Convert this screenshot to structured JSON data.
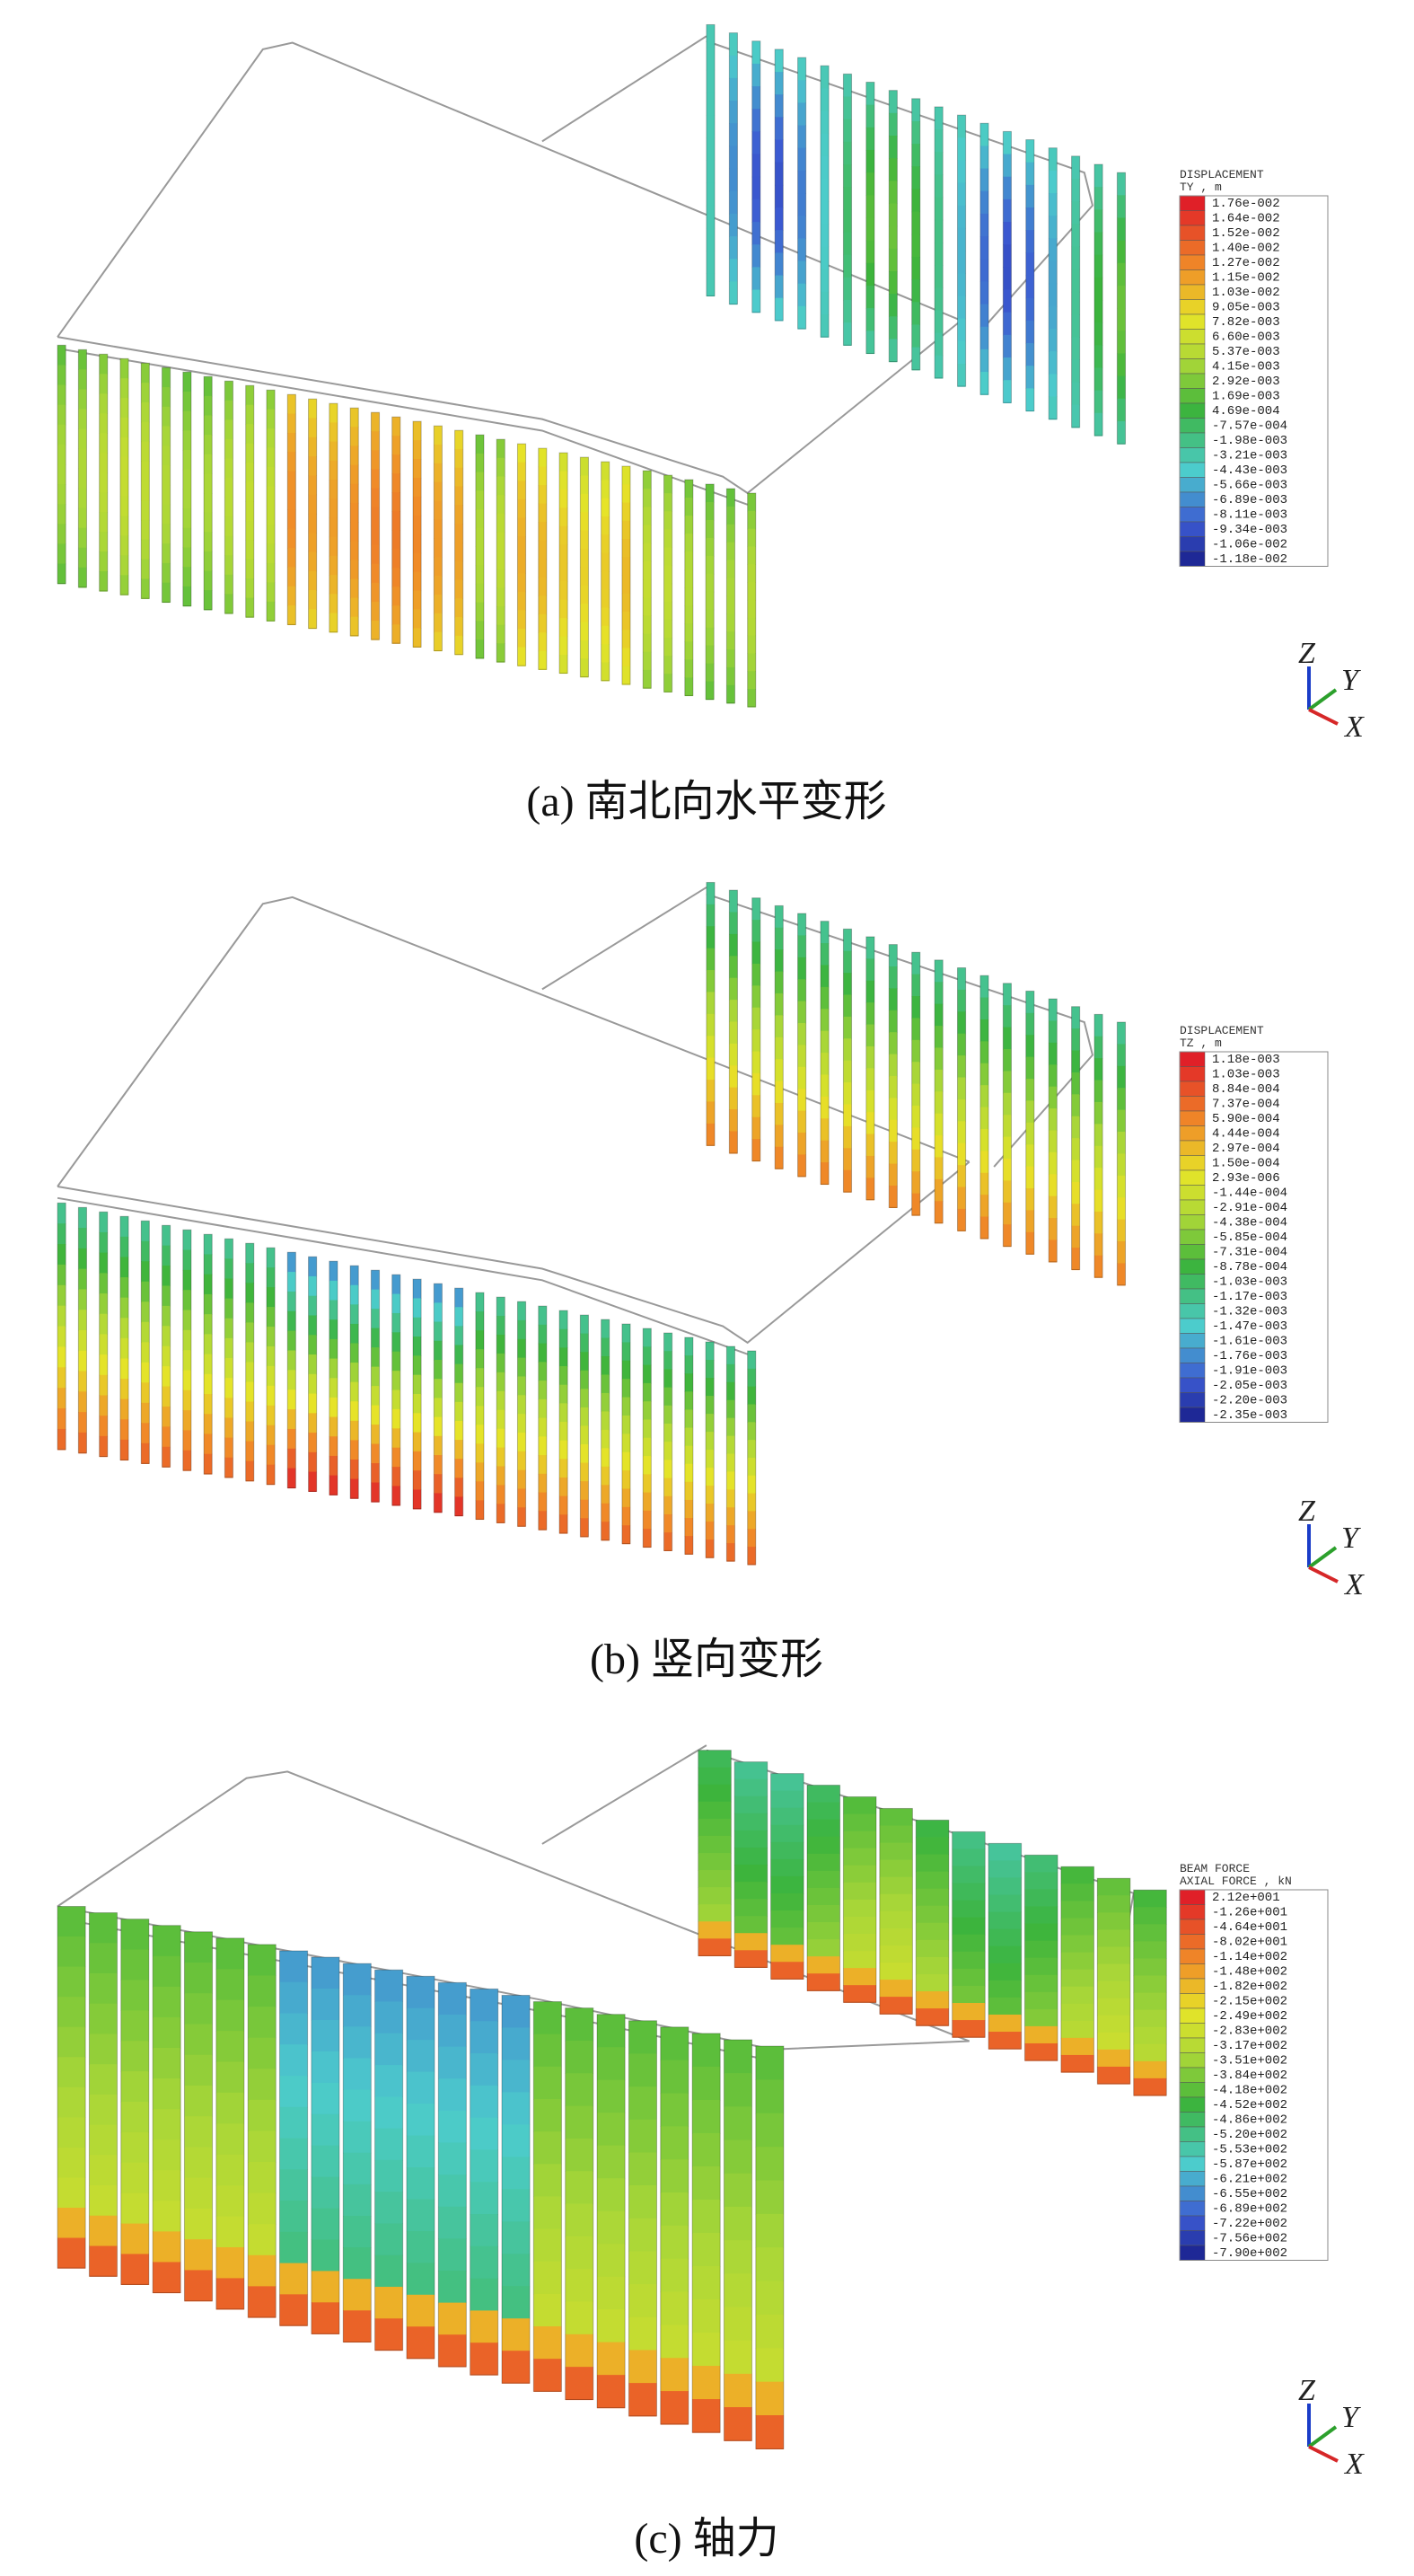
{
  "panels": [
    {
      "legend": {
        "title": [
          "DISPLACEMENT",
          "TY , m"
        ],
        "labels": [
          "1.76e-002",
          "1.64e-002",
          "1.52e-002",
          "1.40e-002",
          "1.27e-002",
          "1.15e-002",
          "1.03e-002",
          "9.05e-003",
          "7.82e-003",
          "6.60e-003",
          "5.37e-003",
          "4.15e-003",
          "2.92e-003",
          "1.69e-003",
          "4.69e-004",
          "-7.57e-004",
          "-1.98e-003",
          "-3.21e-003",
          "-4.43e-003",
          "-5.66e-003",
          "-6.89e-003",
          "-8.11e-003",
          "-9.34e-003",
          "-1.06e-002",
          "-1.18e-002"
        ]
      },
      "axes": [
        "Z",
        "Y",
        "X"
      ],
      "caption": "(a) 南北向水平变形"
    },
    {
      "legend": {
        "title": [
          "DISPLACEMENT",
          "TZ , m"
        ],
        "labels": [
          "1.18e-003",
          "1.03e-003",
          "8.84e-004",
          "7.37e-004",
          "5.90e-004",
          "4.44e-004",
          "2.97e-004",
          "1.50e-004",
          "2.93e-006",
          "-1.44e-004",
          "-2.91e-004",
          "-4.38e-004",
          "-5.85e-004",
          "-7.31e-004",
          "-8.78e-004",
          "-1.03e-003",
          "-1.17e-003",
          "-1.32e-003",
          "-1.47e-003",
          "-1.61e-003",
          "-1.76e-003",
          "-1.91e-003",
          "-2.05e-003",
          "-2.20e-003",
          "-2.35e-003"
        ]
      },
      "axes": [
        "Z",
        "Y",
        "X"
      ],
      "caption": "(b) 竖向变形"
    },
    {
      "legend": {
        "title": [
          "BEAM FORCE",
          "AXIAL FORCE , kN"
        ],
        "labels": [
          "2.12e+001",
          "-1.26e+001",
          "-4.64e+001",
          "-8.02e+001",
          "-1.14e+002",
          "-1.48e+002",
          "-1.82e+002",
          "-2.15e+002",
          "-2.49e+002",
          "-2.83e+002",
          "-3.17e+002",
          "-3.51e+002",
          "-3.84e+002",
          "-4.18e+002",
          "-4.52e+002",
          "-4.86e+002",
          "-5.20e+002",
          "-5.53e+002",
          "-5.87e+002",
          "-6.21e+002",
          "-6.55e+002",
          "-6.89e+002",
          "-7.22e+002",
          "-7.56e+002",
          "-7.90e+002"
        ]
      },
      "axes": [
        "Z",
        "Y",
        "X"
      ],
      "caption": "(c) 轴力"
    }
  ]
}
